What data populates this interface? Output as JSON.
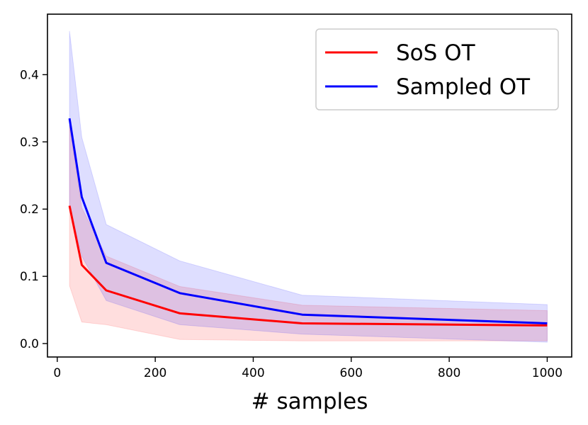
{
  "chart_data": {
    "type": "line",
    "title": "",
    "xlabel": "# samples",
    "ylabel": "",
    "xlim": [
      -20,
      1050
    ],
    "ylim": [
      -0.02,
      0.49
    ],
    "xticks": [
      0,
      200,
      400,
      600,
      800,
      1000
    ],
    "yticks": [
      0.0,
      0.1,
      0.2,
      0.3,
      0.4
    ],
    "xtick_labels": [
      "0",
      "200",
      "400",
      "600",
      "800",
      "1000"
    ],
    "ytick_labels": [
      "0.0",
      "0.1",
      "0.2",
      "0.3",
      "0.4"
    ],
    "x": [
      25,
      50,
      100,
      250,
      500,
      1000
    ],
    "grid": false,
    "legend_position": "top-right",
    "series": [
      {
        "name": "SoS OT",
        "color": "#ff0000",
        "values": [
          0.205,
          0.117,
          0.079,
          0.045,
          0.03,
          0.027
        ],
        "upper": [
          0.325,
          0.202,
          0.13,
          0.085,
          0.057,
          0.049
        ],
        "lower": [
          0.086,
          0.032,
          0.028,
          0.006,
          0.004,
          0.004
        ]
      },
      {
        "name": "Sampled OT",
        "color": "#0000ff",
        "values": [
          0.335,
          0.218,
          0.12,
          0.075,
          0.043,
          0.03
        ],
        "upper": [
          0.465,
          0.307,
          0.177,
          0.123,
          0.072,
          0.058
        ],
        "lower": [
          0.205,
          0.13,
          0.064,
          0.028,
          0.014,
          0.002
        ]
      }
    ]
  }
}
